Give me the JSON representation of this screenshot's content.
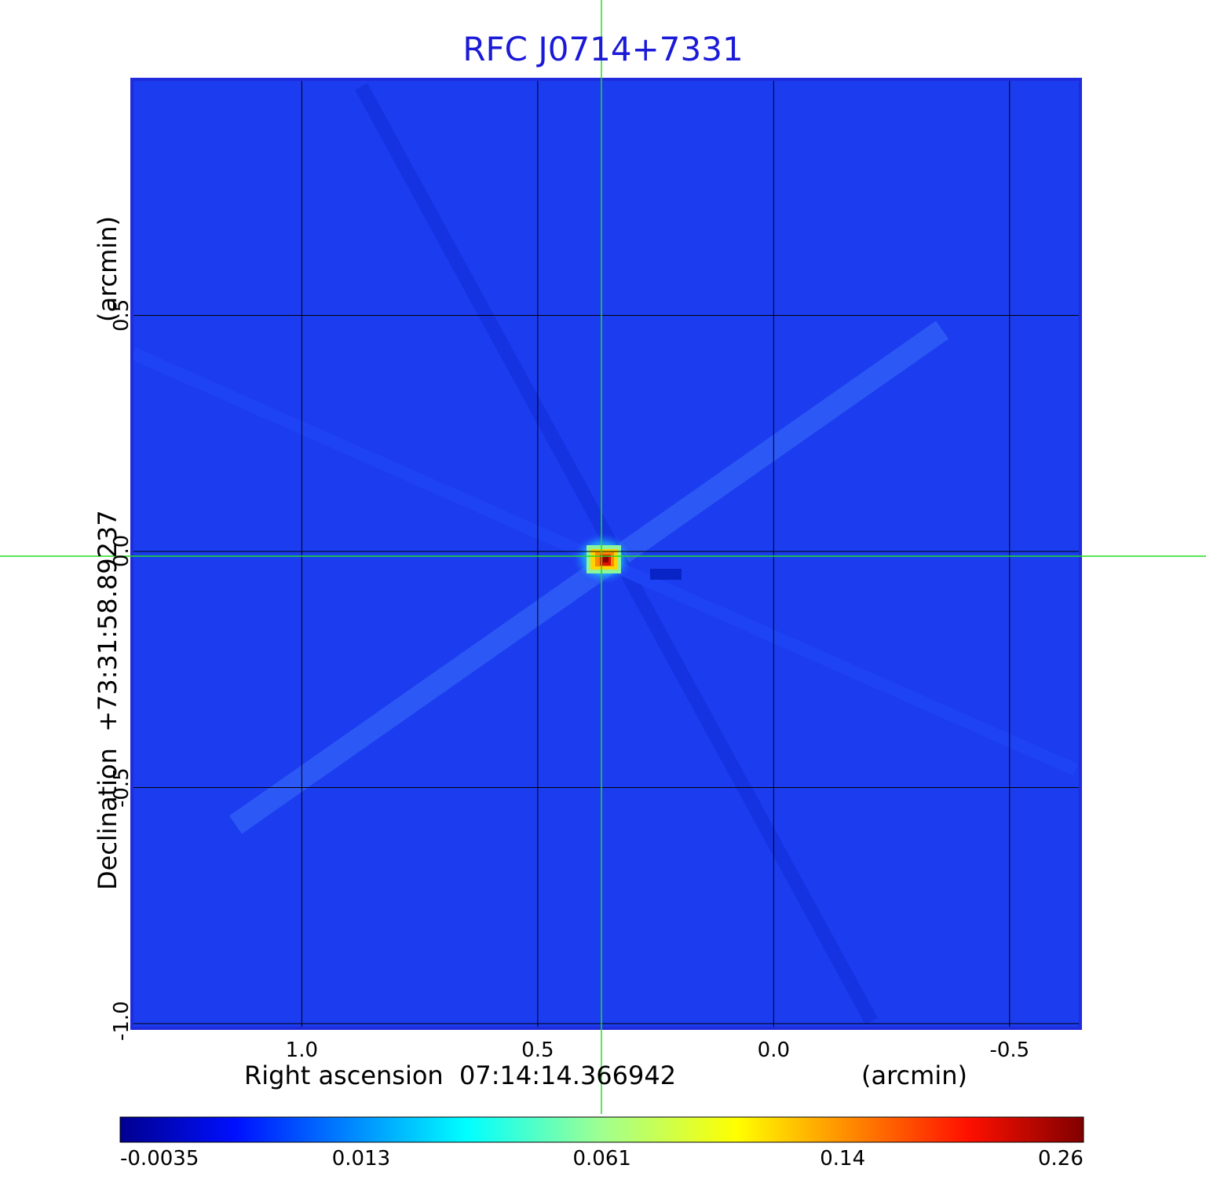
{
  "chart_data": {
    "type": "heatmap",
    "title": "RFC J0714+7331",
    "xlabel": "Right ascension  07:14:14.366942",
    "xunit": "(arcmin)",
    "ylabel": "Declination  +73:31:58.89237",
    "yunit": "(arcmin)",
    "x_ticks": [
      1.0,
      0.5,
      0.0,
      -0.5
    ],
    "x_tick_labels": [
      "1.0",
      "0.5",
      "0.0",
      "-0.5"
    ],
    "y_ticks": [
      0.5,
      0.0,
      -0.5,
      -1.0
    ],
    "y_tick_labels": [
      "0.5",
      "0.0",
      "-0.5",
      "-1.0"
    ],
    "xlim": [
      1.36,
      -0.65
    ],
    "ylim": [
      -1.01,
      1.0
    ],
    "grid": true,
    "crosshair": {
      "x": 0.365,
      "y": -0.01
    },
    "source_peak": {
      "x": 0.36,
      "y": -0.01,
      "value": 0.26
    },
    "colorbar": {
      "colormap": "jet",
      "ticks": [
        -0.0035,
        0.013,
        0.061,
        0.14,
        0.26
      ],
      "tick_labels": [
        "-0.0035",
        "0.013",
        "0.061",
        "0.14",
        "0.26"
      ]
    },
    "colors": {
      "background_map": "#1c3cf0",
      "frame": "#1f2bdc",
      "grid": "#000000",
      "crosshair": "#22dd22",
      "title": "#1a1ad8"
    }
  }
}
